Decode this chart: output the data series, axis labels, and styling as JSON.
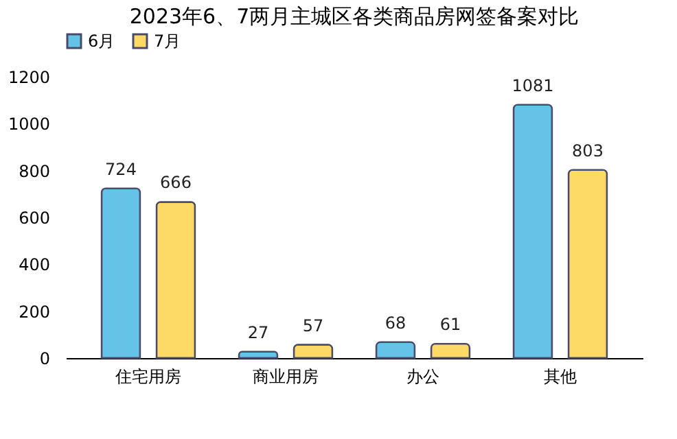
{
  "chart_data": {
    "type": "bar",
    "title": "2023年6、7两月主城区各类商品房网签备案对比",
    "categories": [
      "住宅用房",
      "商业用房",
      "办公",
      "其他"
    ],
    "series": [
      {
        "name": "6月",
        "color": "#66c3e8",
        "values": [
          724,
          27,
          68,
          1081
        ]
      },
      {
        "name": "7月",
        "color": "#fdd966",
        "values": [
          666,
          57,
          61,
          803
        ]
      }
    ],
    "ylim": [
      0,
      1200
    ],
    "yticks": [
      0,
      200,
      400,
      600,
      800,
      1000,
      1200
    ],
    "data_labels": true,
    "legend": "top",
    "grid": false
  }
}
